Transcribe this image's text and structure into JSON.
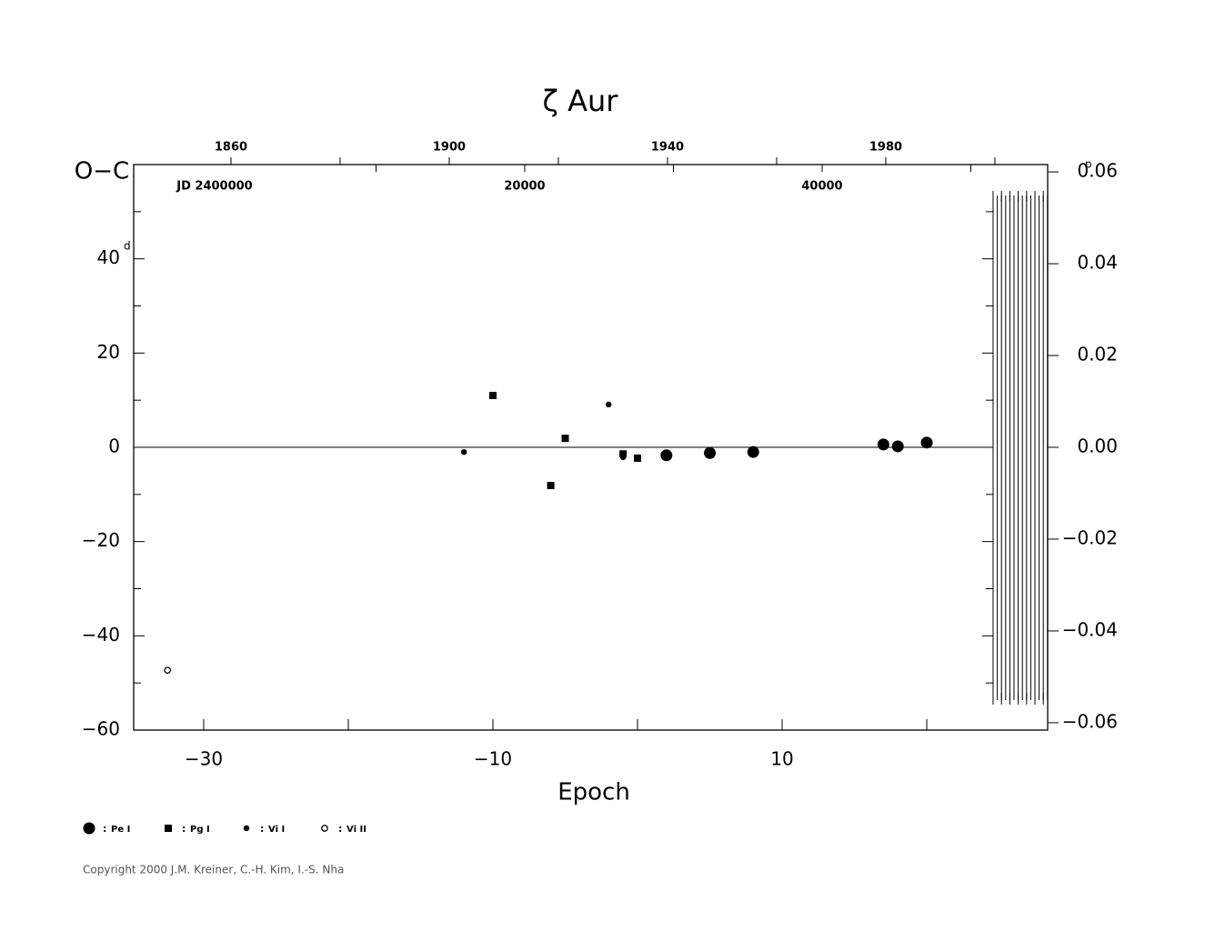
{
  "chart_data": {
    "type": "scatter",
    "title": "ζ Aur",
    "y_label": "O−C",
    "y_unit": "d",
    "y2_unit": "p",
    "x_label": "Epoch",
    "top_year_ticks": [
      1860,
      1900,
      1940,
      1980
    ],
    "top_year_minor_ticks": [
      1880,
      1920,
      1960,
      2000
    ],
    "top_year_lim": [
      1842.17,
      2009.67
    ],
    "jd_label": "JD  2400000",
    "jd_ticks": [
      20000,
      40000
    ],
    "jd_minor_ticks": [
      10000,
      30000,
      50000
    ],
    "jd_lim": [
      -6300,
      55168
    ],
    "xlim": [
      -34.84,
      28.36
    ],
    "xticks": [
      {
        "value": -30,
        "label": "−30"
      },
      {
        "value": -10,
        "label": "−10"
      },
      10
    ],
    "xminorticks": [
      -20,
      0,
      20
    ],
    "ylim": [
      -60,
      60
    ],
    "yticks": [
      {
        "value": -60,
        "label": "−60"
      },
      {
        "value": -40,
        "label": "−40"
      },
      {
        "value": -20,
        "label": "−20"
      },
      0,
      20,
      40
    ],
    "yminorticks": [
      -50,
      -30,
      -10,
      10,
      30,
      50
    ],
    "y2lim": [
      -0.0616,
      0.0616
    ],
    "y2ticks": [
      {
        "value": -0.06,
        "label": "−0.06"
      },
      {
        "value": -0.04,
        "label": "−0.04"
      },
      {
        "value": -0.02,
        "label": "−0.02"
      },
      {
        "value": 0,
        "label": "0.00"
      },
      0.02,
      0.04,
      0.06
    ],
    "zero_line": true,
    "series": [
      {
        "name": "Pe I",
        "marker": "circle",
        "size": 6.5,
        "color": "#000000",
        "x": [
          2,
          5,
          8,
          17,
          18,
          20
        ],
        "values": [
          -1.7,
          -1.2,
          -1.0,
          0.6,
          0.2,
          1.0
        ]
      },
      {
        "name": "Pg I",
        "marker": "square",
        "size": 4,
        "color": "#000000",
        "x": [
          -10,
          -6,
          -5,
          -1,
          0
        ],
        "values": [
          11.0,
          -8.1,
          1.9,
          -1.4,
          -2.3
        ]
      },
      {
        "name": "Vi I",
        "marker": "circle",
        "size": 3.2,
        "color": "#000000",
        "x": [
          -12,
          -2,
          -1
        ],
        "values": [
          -1.0,
          9.1,
          -2.1
        ]
      },
      {
        "name": "Vi II",
        "marker": "open-circle",
        "size": 3.2,
        "color": "#000000",
        "x": [
          -32.5
        ],
        "values": [
          -47.3
        ]
      }
    ],
    "legend_prefix": ":",
    "copyright": "Copyright 2000 J.M. Kreiner, C.-H. Kim, I.-S. Nha"
  }
}
